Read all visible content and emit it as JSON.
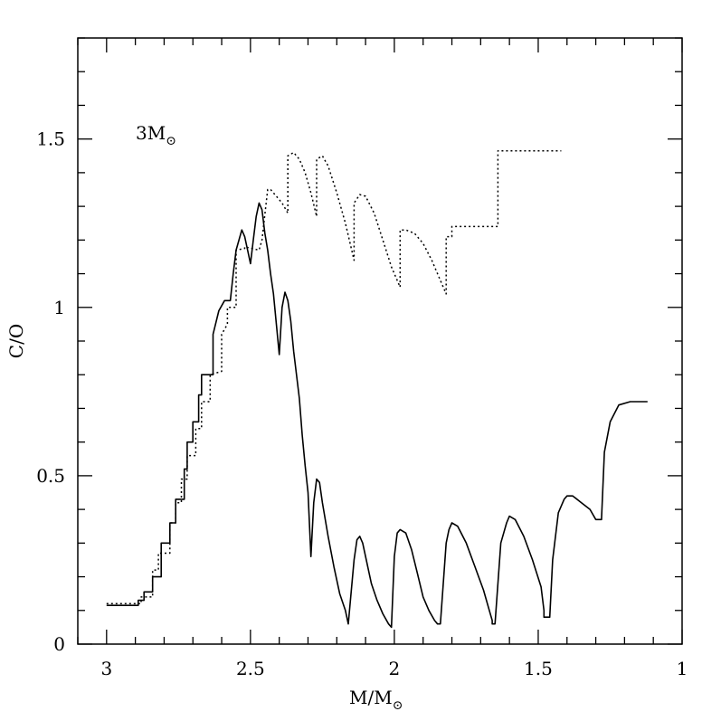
{
  "chart_data": {
    "type": "line",
    "annotation": {
      "text": "3M",
      "symbol": "⊙"
    },
    "xlabel": {
      "main": "M/M",
      "symbol": "⊙"
    },
    "ylabel": "C/O",
    "xlim": [
      3.1,
      1.0
    ],
    "ylim": [
      0,
      1.8
    ],
    "x_reversed": true,
    "x_ticks": [
      {
        "value": 3,
        "label": "3"
      },
      {
        "value": 2.5,
        "label": "2.5"
      },
      {
        "value": 2,
        "label": "2"
      },
      {
        "value": 1.5,
        "label": "1.5"
      },
      {
        "value": 1,
        "label": "1"
      }
    ],
    "y_ticks": [
      {
        "value": 0,
        "label": "0"
      },
      {
        "value": 0.5,
        "label": "0.5"
      },
      {
        "value": 1,
        "label": "1"
      },
      {
        "value": 1.5,
        "label": "1.5"
      }
    ],
    "series": [
      {
        "style": "dotted",
        "points": [
          [
            3.0,
            0.12
          ],
          [
            2.88,
            0.12
          ],
          [
            2.88,
            0.14
          ],
          [
            2.84,
            0.14
          ],
          [
            2.84,
            0.22
          ],
          [
            2.82,
            0.22
          ],
          [
            2.82,
            0.27
          ],
          [
            2.78,
            0.27
          ],
          [
            2.78,
            0.36
          ],
          [
            2.76,
            0.36
          ],
          [
            2.76,
            0.42
          ],
          [
            2.74,
            0.42
          ],
          [
            2.74,
            0.49
          ],
          [
            2.72,
            0.49
          ],
          [
            2.72,
            0.56
          ],
          [
            2.69,
            0.56
          ],
          [
            2.69,
            0.64
          ],
          [
            2.67,
            0.64
          ],
          [
            2.67,
            0.72
          ],
          [
            2.64,
            0.72
          ],
          [
            2.64,
            0.8
          ],
          [
            2.6,
            0.81
          ],
          [
            2.6,
            0.92
          ],
          [
            2.58,
            0.95
          ],
          [
            2.58,
            1.0
          ],
          [
            2.55,
            1.0
          ],
          [
            2.55,
            1.17
          ],
          [
            2.52,
            1.175
          ],
          [
            2.52,
            1.18
          ],
          [
            2.47,
            1.17
          ],
          [
            2.46,
            1.2
          ],
          [
            2.44,
            1.35
          ],
          [
            2.43,
            1.35
          ],
          [
            2.41,
            1.33
          ],
          [
            2.39,
            1.31
          ],
          [
            2.37,
            1.28
          ],
          [
            2.37,
            1.45
          ],
          [
            2.35,
            1.46
          ],
          [
            2.33,
            1.44
          ],
          [
            2.31,
            1.4
          ],
          [
            2.29,
            1.34
          ],
          [
            2.27,
            1.27
          ],
          [
            2.27,
            1.44
          ],
          [
            2.25,
            1.45
          ],
          [
            2.23,
            1.42
          ],
          [
            2.2,
            1.34
          ],
          [
            2.17,
            1.25
          ],
          [
            2.14,
            1.14
          ],
          [
            2.14,
            1.31
          ],
          [
            2.12,
            1.335
          ],
          [
            2.1,
            1.33
          ],
          [
            2.07,
            1.28
          ],
          [
            2.04,
            1.2
          ],
          [
            2.01,
            1.12
          ],
          [
            1.98,
            1.06
          ],
          [
            1.98,
            1.23
          ],
          [
            1.96,
            1.23
          ],
          [
            1.93,
            1.22
          ],
          [
            1.9,
            1.19
          ],
          [
            1.87,
            1.14
          ],
          [
            1.84,
            1.08
          ],
          [
            1.82,
            1.04
          ],
          [
            1.82,
            1.21
          ],
          [
            1.8,
            1.21
          ],
          [
            1.8,
            1.24
          ],
          [
            1.64,
            1.24
          ],
          [
            1.64,
            1.465
          ],
          [
            1.42,
            1.465
          ]
        ]
      },
      {
        "style": "solid",
        "points": [
          [
            3.0,
            0.115
          ],
          [
            2.89,
            0.115
          ],
          [
            2.89,
            0.13
          ],
          [
            2.87,
            0.13
          ],
          [
            2.87,
            0.155
          ],
          [
            2.84,
            0.155
          ],
          [
            2.84,
            0.2
          ],
          [
            2.81,
            0.2
          ],
          [
            2.81,
            0.3
          ],
          [
            2.78,
            0.3
          ],
          [
            2.78,
            0.36
          ],
          [
            2.76,
            0.36
          ],
          [
            2.76,
            0.43
          ],
          [
            2.73,
            0.43
          ],
          [
            2.73,
            0.52
          ],
          [
            2.72,
            0.52
          ],
          [
            2.72,
            0.6
          ],
          [
            2.7,
            0.6
          ],
          [
            2.7,
            0.66
          ],
          [
            2.68,
            0.66
          ],
          [
            2.68,
            0.74
          ],
          [
            2.67,
            0.74
          ],
          [
            2.67,
            0.8
          ],
          [
            2.63,
            0.8
          ],
          [
            2.63,
            0.92
          ],
          [
            2.61,
            0.99
          ],
          [
            2.59,
            1.02
          ],
          [
            2.57,
            1.02
          ],
          [
            2.56,
            1.1
          ],
          [
            2.55,
            1.17
          ],
          [
            2.53,
            1.23
          ],
          [
            2.52,
            1.21
          ],
          [
            2.51,
            1.17
          ],
          [
            2.5,
            1.13
          ],
          [
            2.49,
            1.2
          ],
          [
            2.48,
            1.27
          ],
          [
            2.47,
            1.31
          ],
          [
            2.46,
            1.29
          ],
          [
            2.45,
            1.22
          ],
          [
            2.44,
            1.17
          ],
          [
            2.43,
            1.1
          ],
          [
            2.42,
            1.04
          ],
          [
            2.4,
            0.86
          ],
          [
            2.39,
            1.0
          ],
          [
            2.38,
            1.045
          ],
          [
            2.37,
            1.02
          ],
          [
            2.36,
            0.96
          ],
          [
            2.35,
            0.87
          ],
          [
            2.33,
            0.73
          ],
          [
            2.32,
            0.62
          ],
          [
            2.31,
            0.53
          ],
          [
            2.3,
            0.45
          ],
          [
            2.29,
            0.26
          ],
          [
            2.28,
            0.42
          ],
          [
            2.27,
            0.49
          ],
          [
            2.26,
            0.48
          ],
          [
            2.25,
            0.42
          ],
          [
            2.23,
            0.32
          ],
          [
            2.21,
            0.23
          ],
          [
            2.19,
            0.15
          ],
          [
            2.17,
            0.1
          ],
          [
            2.16,
            0.06
          ],
          [
            2.14,
            0.25
          ],
          [
            2.13,
            0.31
          ],
          [
            2.12,
            0.32
          ],
          [
            2.11,
            0.3
          ],
          [
            2.1,
            0.26
          ],
          [
            2.08,
            0.18
          ],
          [
            2.06,
            0.13
          ],
          [
            2.04,
            0.09
          ],
          [
            2.02,
            0.06
          ],
          [
            2.01,
            0.05
          ],
          [
            2.0,
            0.26
          ],
          [
            1.99,
            0.33
          ],
          [
            1.98,
            0.34
          ],
          [
            1.96,
            0.33
          ],
          [
            1.94,
            0.28
          ],
          [
            1.92,
            0.21
          ],
          [
            1.9,
            0.14
          ],
          [
            1.88,
            0.1
          ],
          [
            1.86,
            0.07
          ],
          [
            1.85,
            0.06
          ],
          [
            1.84,
            0.06
          ],
          [
            1.82,
            0.3
          ],
          [
            1.81,
            0.34
          ],
          [
            1.8,
            0.36
          ],
          [
            1.78,
            0.35
          ],
          [
            1.75,
            0.3
          ],
          [
            1.72,
            0.23
          ],
          [
            1.69,
            0.16
          ],
          [
            1.67,
            0.1
          ],
          [
            1.66,
            0.07
          ],
          [
            1.66,
            0.06
          ],
          [
            1.65,
            0.06
          ],
          [
            1.63,
            0.3
          ],
          [
            1.61,
            0.36
          ],
          [
            1.6,
            0.38
          ],
          [
            1.58,
            0.37
          ],
          [
            1.55,
            0.32
          ],
          [
            1.52,
            0.25
          ],
          [
            1.49,
            0.17
          ],
          [
            1.48,
            0.1
          ],
          [
            1.48,
            0.08
          ],
          [
            1.46,
            0.08
          ],
          [
            1.45,
            0.25
          ],
          [
            1.43,
            0.39
          ],
          [
            1.41,
            0.43
          ],
          [
            1.4,
            0.44
          ],
          [
            1.38,
            0.44
          ],
          [
            1.35,
            0.42
          ],
          [
            1.32,
            0.4
          ],
          [
            1.3,
            0.37
          ],
          [
            1.28,
            0.37
          ],
          [
            1.27,
            0.57
          ],
          [
            1.25,
            0.66
          ],
          [
            1.22,
            0.71
          ],
          [
            1.18,
            0.72
          ],
          [
            1.12,
            0.72
          ]
        ]
      }
    ]
  }
}
